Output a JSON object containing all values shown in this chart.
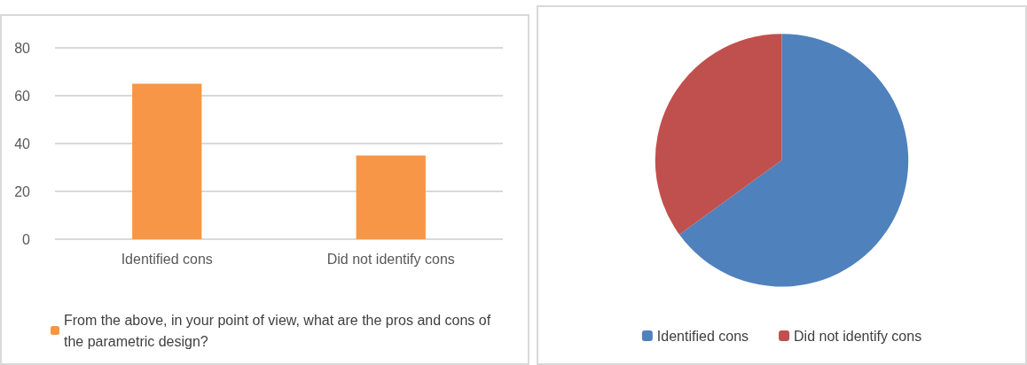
{
  "chart_data": [
    {
      "type": "bar",
      "categories": [
        "Identified cons",
        "Did not identify cons"
      ],
      "series": [
        {
          "name": "From the above, in your point of view, what are the pros and cons of the parametric design?",
          "color": "#f79646",
          "values": [
            65,
            35
          ]
        }
      ],
      "ylim": [
        0,
        80
      ],
      "yticks": [
        0,
        20,
        40,
        60,
        80
      ],
      "grid": "y",
      "legend": "bottom"
    },
    {
      "type": "pie",
      "categories": [
        "Identified cons",
        "Did not identify cons"
      ],
      "values": [
        65,
        35
      ],
      "colors": [
        "#4f81bd",
        "#c0504d"
      ],
      "legend": "bottom"
    }
  ]
}
